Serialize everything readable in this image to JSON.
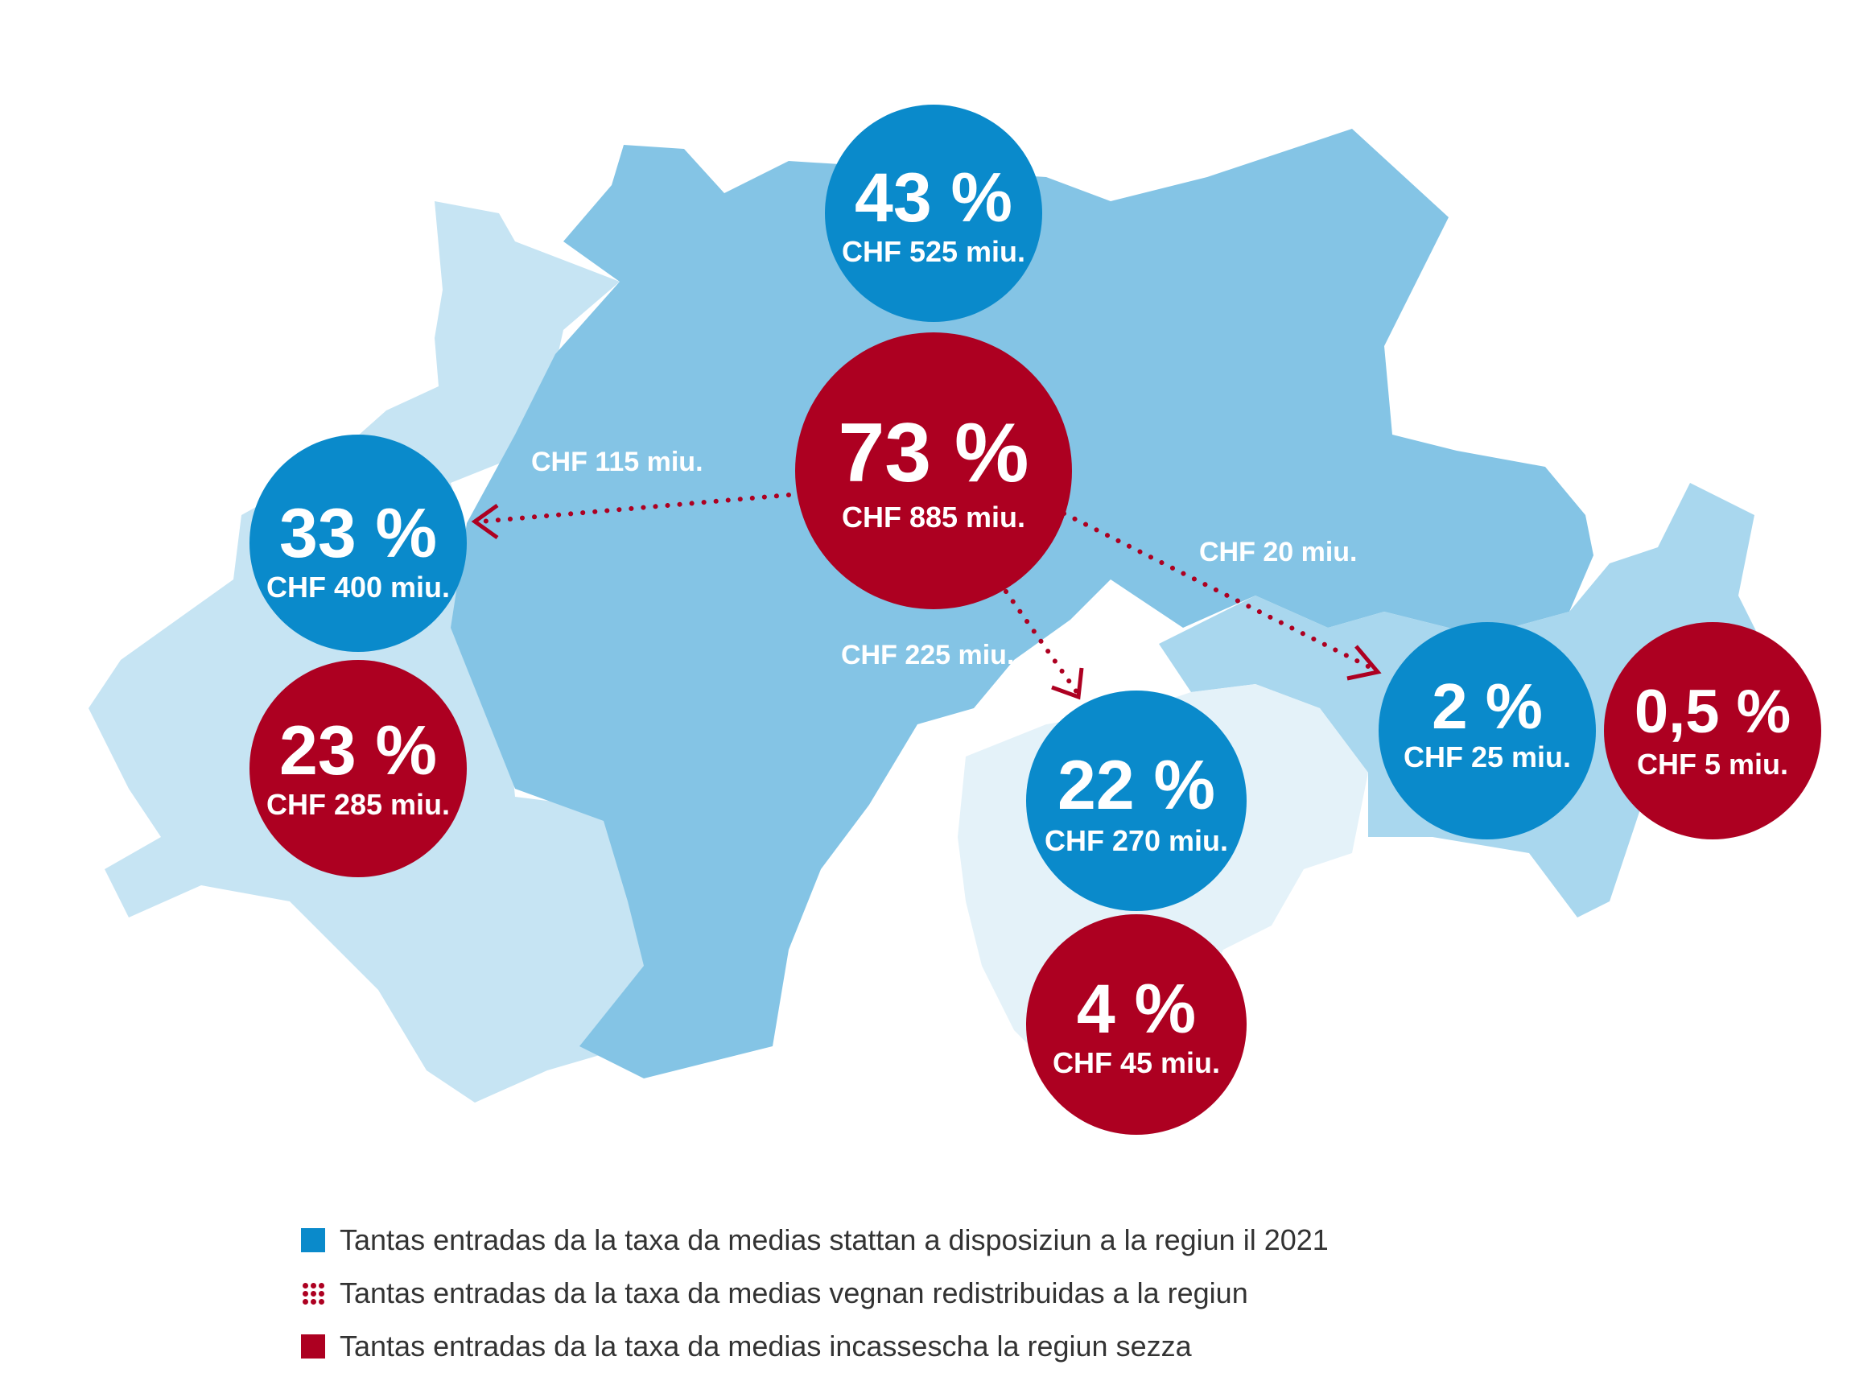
{
  "colors": {
    "blue_circle": "#0a8acb",
    "red_circle": "#ad0021",
    "region_central": "#84c4e5",
    "region_west": "#c6e4f3",
    "region_south": "#e4f2f9",
    "region_east": "#a9d7ee",
    "text": "#333333"
  },
  "regions": [
    {
      "id": "german",
      "blue": {
        "pct": "43 %",
        "chf": "CHF 525 miu."
      },
      "red": {
        "pct": "73 %",
        "chf": "CHF 885 miu."
      }
    },
    {
      "id": "french",
      "blue": {
        "pct": "33 %",
        "chf": "CHF 400 miu."
      },
      "red": {
        "pct": "23 %",
        "chf": "CHF 285 miu."
      }
    },
    {
      "id": "italian",
      "blue": {
        "pct": "22 %",
        "chf": "CHF 270 miu."
      },
      "red": {
        "pct": "4 %",
        "chf": "CHF 45 miu."
      }
    },
    {
      "id": "romansh",
      "blue": {
        "pct": "2 %",
        "chf": "CHF 25 miu."
      },
      "red": {
        "pct": "0,5 %",
        "chf": "CHF 5 miu."
      }
    }
  ],
  "flows": [
    {
      "to": "french",
      "label": "CHF 115 miu."
    },
    {
      "to": "romansh",
      "label": "CHF 20 miu."
    },
    {
      "to": "italian",
      "label": "CHF 225 miu."
    }
  ],
  "legend": [
    {
      "type": "square",
      "color": "#0a8acb",
      "text": "Tantas entradas da la taxa da medias stattan a disposiziun a la regiun il 2021"
    },
    {
      "type": "dots",
      "color": "#ad0021",
      "text": "Tantas entradas da la taxa da medias vegnan redistribuidas a la regiun"
    },
    {
      "type": "square",
      "color": "#ad0021",
      "text": "Tantas entradas da la taxa da medias incassescha la regiun sezza"
    }
  ]
}
